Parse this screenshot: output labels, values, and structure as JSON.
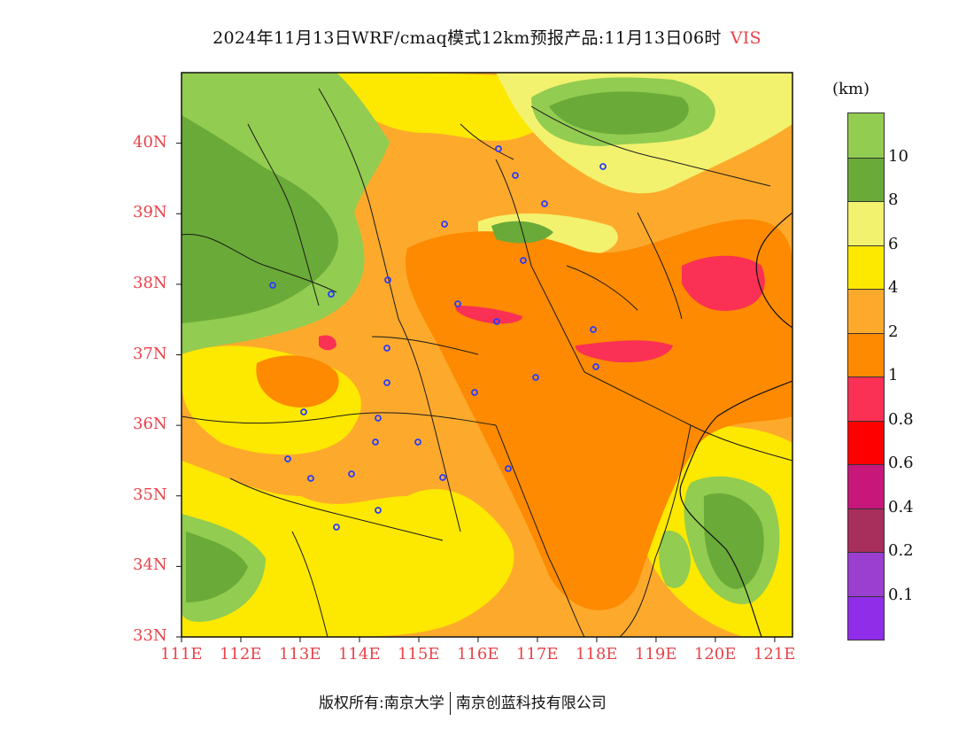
{
  "title": {
    "main": "2024年11月13日WRF/cmaq模式12km预报产品:11月13日06时",
    "variable": "VIS"
  },
  "map": {
    "lat_labels": [
      "40N",
      "39N",
      "38N",
      "37N",
      "36N",
      "35N",
      "34N",
      "33N"
    ],
    "lon_labels": [
      "111E",
      "112E",
      "113E",
      "114E",
      "115E",
      "116E",
      "117E",
      "118E",
      "119E",
      "120E",
      "121E"
    ],
    "label_color": "#e8434a",
    "lon_range": [
      111,
      121.3
    ],
    "lat_range": [
      33,
      41
    ]
  },
  "legend": {
    "unit": "(km)",
    "colors": [
      "#92cc50",
      "#6aaa38",
      "#f2f26e",
      "#fde800",
      "#fdaa2c",
      "#fd8a00",
      "#fa3054",
      "#ff0000",
      "#c8177a",
      "#a82e5c",
      "#9b3fd0",
      "#8f2de8"
    ],
    "labels": [
      "10",
      "8",
      "6",
      "4",
      "2",
      "1",
      "0.8",
      "0.6",
      "0.4",
      "0.2",
      "0.1"
    ]
  },
  "footer": {
    "copyright_left": "版权所有:南京大学",
    "copyright_right": "南京创蓝科技有限公司"
  }
}
